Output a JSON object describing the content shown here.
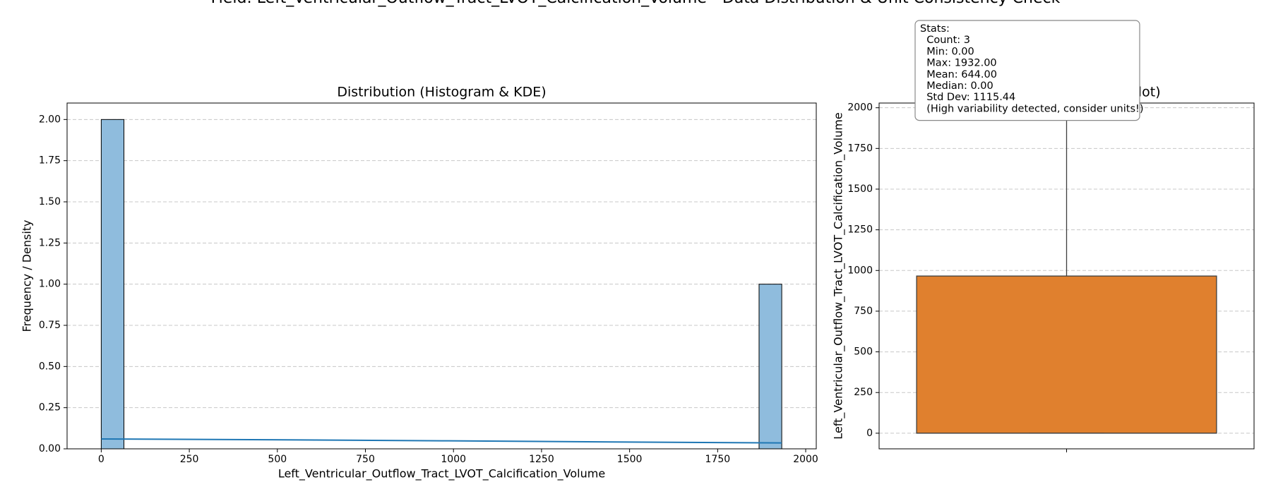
{
  "title": "Field: Left_Ventricular_Outflow_Tract_LVOT_Calcification_Volume - Data Distribution & Unit Consistency Check",
  "chart_data": [
    {
      "type": "histogram",
      "title": "Distribution (Histogram & KDE)",
      "x_label": "Left_Ventricular_Outflow_Tract_LVOT_Calcification_Volume",
      "y_label": "Frequency / Density",
      "bins": [
        0,
        64.4,
        128.8,
        193.2,
        257.6,
        322,
        386.4,
        450.8,
        515.2,
        579.6,
        644,
        708.4,
        772.8,
        837.2,
        901.6,
        966,
        1030.4,
        1094.8,
        1159.2,
        1223.6,
        1288,
        1352.4,
        1416.8,
        1481.2,
        1545.6,
        1610,
        1674.4,
        1738.8,
        1803.2,
        1867.6,
        1932
      ],
      "counts": [
        2,
        0,
        0,
        0,
        0,
        0,
        0,
        0,
        0,
        0,
        0,
        0,
        0,
        0,
        0,
        0,
        0,
        0,
        0,
        0,
        0,
        0,
        0,
        0,
        0,
        0,
        0,
        0,
        0,
        1
      ],
      "color": "#8fbcdd",
      "kde": {
        "x": [
          0,
          483,
          966,
          1449,
          1932
        ],
        "values": [
          0.06,
          0.055,
          0.049,
          0.042,
          0.036
        ],
        "color": "#1f77b4"
      },
      "xlim": [
        -97,
        2030
      ],
      "ylim": [
        0,
        2.1
      ],
      "xticks": [
        0,
        250,
        500,
        750,
        1000,
        1250,
        1500,
        1750,
        2000
      ],
      "yticks": [
        {
          "value": 0,
          "label": "0.00"
        },
        {
          "value": 0.25,
          "label": "0.25"
        },
        {
          "value": 0.5,
          "label": "0.50"
        },
        {
          "value": 0.75,
          "label": "0.75"
        },
        {
          "value": 1,
          "label": "1.00"
        },
        {
          "value": 1.25,
          "label": "1.25"
        },
        {
          "value": 1.5,
          "label": "1.50"
        },
        {
          "value": 1.75,
          "label": "1.75"
        },
        {
          "value": 2,
          "label": "2.00"
        }
      ],
      "grid": true
    },
    {
      "type": "box",
      "title": "Spread & Outliers (Box Plot)",
      "y_label": "Left_Ventricular_Outflow_Tract_LVOT_Calcification_Volume",
      "stats": {
        "whisker_low": 0,
        "q1": 0,
        "median": 0,
        "q3": 966,
        "whisker_high": 1932
      },
      "color": "#e0802e",
      "ylim": [
        -96,
        2029
      ],
      "yticks": [
        0,
        250,
        500,
        750,
        1000,
        1250,
        1500,
        1750,
        2000
      ],
      "grid": true,
      "annotation": [
        "Stats:",
        "  Count: 3",
        "  Min: 0.00",
        "  Max: 1932.00",
        "  Mean: 644.00",
        "  Median: 0.00",
        "  Std Dev: 1115.44",
        "  (High variability detected, consider units!)"
      ]
    }
  ]
}
